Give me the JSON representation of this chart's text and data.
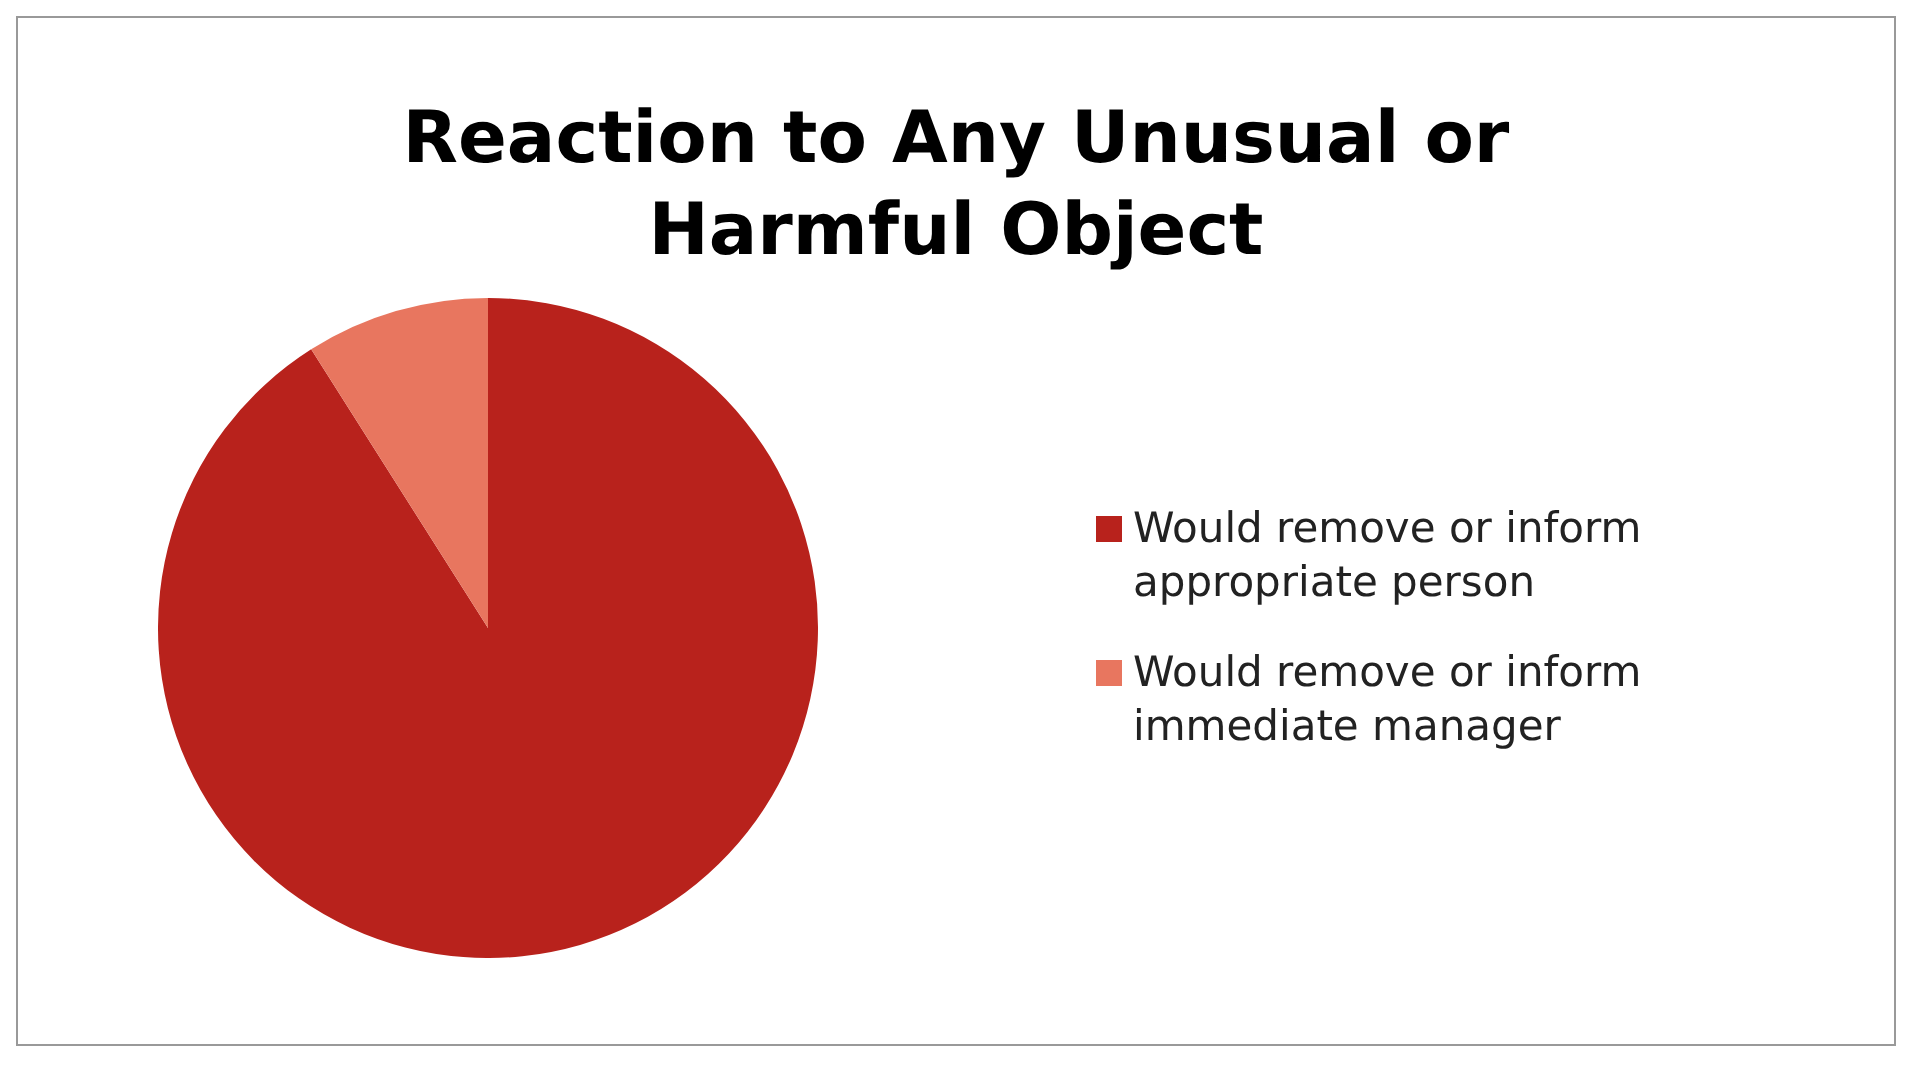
{
  "chart_data": {
    "type": "pie",
    "title": "Reaction to Any Unusual or Harmful Object",
    "categories": [
      "Would remove or inform appropriate person",
      "Would remove or inform immediate manager"
    ],
    "values": [
      91,
      9
    ],
    "colors": [
      "#b8221c",
      "#e8765f"
    ],
    "legend": "right"
  }
}
